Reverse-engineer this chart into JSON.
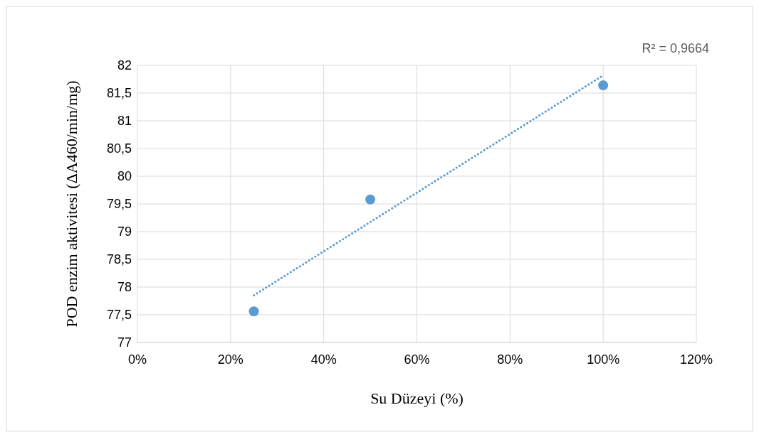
{
  "chart_data": {
    "type": "scatter",
    "xlabel": "Su Düzeyi (%)",
    "ylabel": "POD enzim aktivitesi (ΔA460/min/mg)",
    "series": [
      {
        "color": "#5b9bd5",
        "x": [
          25,
          50,
          100
        ],
        "values": [
          77.56,
          79.58,
          81.64
        ],
        "marker": "circle"
      },
      {
        "type": "line",
        "color": "#5b9bd5",
        "x": [
          25,
          100
        ],
        "values": [
          77.85,
          81.82
        ],
        "line_style": "dotted"
      }
    ],
    "xlim": [
      0,
      120
    ],
    "xticks": [
      {
        "value": 0,
        "label": "0%"
      },
      {
        "value": 20,
        "label": "20%"
      },
      {
        "value": 40,
        "label": "40%"
      },
      {
        "value": 60,
        "label": "60%"
      },
      {
        "value": 80,
        "label": "80%"
      },
      {
        "value": 100,
        "label": "100%"
      },
      {
        "value": 120,
        "label": "120%"
      }
    ],
    "ylim": [
      77,
      82
    ],
    "yticks": [
      77,
      {
        "value": 77.5,
        "label": "77,5"
      },
      78,
      {
        "value": 78.5,
        "label": "78,5"
      },
      79,
      {
        "value": 79.5,
        "label": "79,5"
      },
      80,
      {
        "value": 80.5,
        "label": "80,5"
      },
      81,
      {
        "value": 81.5,
        "label": "81,5"
      },
      82
    ],
    "grid": true,
    "annotations": [
      "R² = 0,9664"
    ]
  }
}
